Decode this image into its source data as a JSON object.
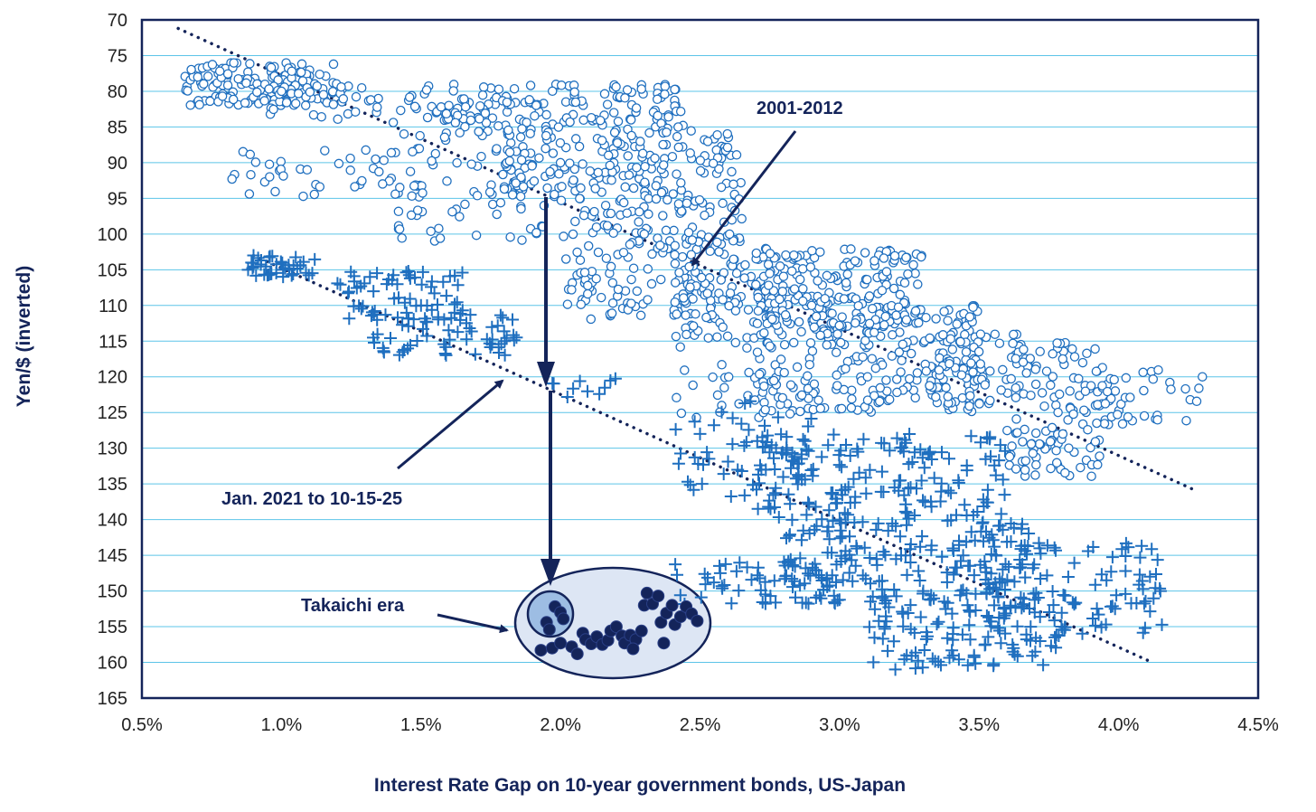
{
  "chart_data": {
    "type": "scatter",
    "title": "",
    "xlabel": "Interest Rate Gap on 10-year government bonds, US-Japan",
    "ylabel": "Yen/$ (inverted)",
    "xlim": [
      0.5,
      4.5
    ],
    "ylim": [
      165,
      70
    ],
    "y_inverted": true,
    "grid": "horizontal",
    "x_ticks": [
      "0.5%",
      "1.0%",
      "1.5%",
      "2.0%",
      "2.5%",
      "3.0%",
      "3.5%",
      "4.0%",
      "4.5%"
    ],
    "x_tick_values": [
      0.5,
      1.0,
      1.5,
      2.0,
      2.5,
      3.0,
      3.5,
      4.0,
      4.5
    ],
    "y_ticks": [
      "70",
      "75",
      "80",
      "85",
      "90",
      "95",
      "100",
      "105",
      "110",
      "115",
      "120",
      "125",
      "130",
      "135",
      "140",
      "145",
      "150",
      "155",
      "160",
      "165"
    ],
    "y_tick_values": [
      70,
      75,
      80,
      85,
      90,
      95,
      100,
      105,
      110,
      115,
      120,
      125,
      130,
      135,
      140,
      145,
      150,
      155,
      160,
      165
    ],
    "colors": {
      "series": "#1f6fbf",
      "dark": "#14245a",
      "grid": "#5cc4e8",
      "ellipse_fill": "#dde6f4",
      "small_circle_fill": "#9dbde3"
    },
    "annotations": {
      "era1": "2001-2012",
      "era2": "Jan. 2021 to 10-15-25",
      "era3": "Takaichi era"
    },
    "trendlines": [
      {
        "name": "2001-2012 trend",
        "x": [
          0.63,
          4.28
        ],
        "y": [
          71.2,
          136
        ]
      },
      {
        "name": "2021-2025 trend",
        "x": [
          0.9,
          4.12
        ],
        "y": [
          103,
          160
        ]
      }
    ],
    "series": [
      {
        "name": "2001-2012",
        "marker": "open-circle",
        "clusters": [
          {
            "x": [
              0.65,
              1.2
            ],
            "y": [
              76,
              82
            ],
            "n": 160
          },
          {
            "x": [
              0.95,
              1.35
            ],
            "y": [
              79,
              84
            ],
            "n": 30
          },
          {
            "x": [
              1.45,
              2.45
            ],
            "y": [
              79,
              85
            ],
            "n": 140
          },
          {
            "x": [
              1.4,
              1.75
            ],
            "y": [
              82,
              87
            ],
            "n": 25
          },
          {
            "x": [
              1.8,
              2.65
            ],
            "y": [
              85,
              95
            ],
            "n": 190
          },
          {
            "x": [
              0.8,
              1.9
            ],
            "y": [
              88,
              95
            ],
            "n": 70
          },
          {
            "x": [
              1.4,
              1.95
            ],
            "y": [
              93,
              101
            ],
            "n": 45
          },
          {
            "x": [
              2.0,
              2.65
            ],
            "y": [
              95,
              112
            ],
            "n": 200
          },
          {
            "x": [
              2.4,
              3.0
            ],
            "y": [
              103,
              116
            ],
            "n": 110
          },
          {
            "x": [
              2.7,
              3.3
            ],
            "y": [
              102,
              113
            ],
            "n": 180
          },
          {
            "x": [
              2.7,
              3.5
            ],
            "y": [
              110,
              125
            ],
            "n": 230
          },
          {
            "x": [
              3.3,
              3.65
            ],
            "y": [
              114,
              124
            ],
            "n": 60
          },
          {
            "x": [
              3.6,
              3.95
            ],
            "y": [
              115,
              134
            ],
            "n": 120
          },
          {
            "x": [
              3.9,
              4.3
            ],
            "y": [
              119,
              127
            ],
            "n": 40
          },
          {
            "x": [
              2.4,
              2.85
            ],
            "y": [
              118,
              126
            ],
            "n": 25
          }
        ],
        "sample_points": [
          [
            0.7,
            78
          ],
          [
            1.0,
            80
          ],
          [
            1.6,
            82
          ],
          [
            2.0,
            90
          ],
          [
            2.3,
            100
          ],
          [
            2.9,
            110
          ],
          [
            3.1,
            120
          ],
          [
            3.8,
            128
          ],
          [
            4.3,
            120
          ]
        ]
      },
      {
        "name": "Jan. 2021 to 10-15-25",
        "marker": "plus",
        "clusters": [
          {
            "x": [
              0.88,
              1.12
            ],
            "y": [
              103,
              106
            ],
            "n": 40
          },
          {
            "x": [
              1.2,
              1.65
            ],
            "y": [
              105,
              112
            ],
            "n": 60
          },
          {
            "x": [
              1.3,
              1.85
            ],
            "y": [
              111,
              117
            ],
            "n": 60
          },
          {
            "x": [
              1.95,
              2.25
            ],
            "y": [
              120,
              123
            ],
            "n": 10
          },
          {
            "x": [
              2.4,
              2.9
            ],
            "y": [
              123,
              137
            ],
            "n": 50
          },
          {
            "x": [
              2.7,
              3.6
            ],
            "y": [
              128,
              140
            ],
            "n": 160
          },
          {
            "x": [
              2.8,
              3.7
            ],
            "y": [
              140,
              152
            ],
            "n": 170
          },
          {
            "x": [
              3.1,
              3.8
            ],
            "y": [
              150,
              161
            ],
            "n": 110
          },
          {
            "x": [
              3.5,
              4.18
            ],
            "y": [
              143,
              156
            ],
            "n": 100
          },
          {
            "x": [
              2.4,
              3.0
            ],
            "y": [
              146,
              152
            ],
            "n": 50
          }
        ],
        "sample_points": [
          [
            0.9,
            103
          ],
          [
            1.5,
            110
          ],
          [
            1.8,
            115
          ],
          [
            2.5,
            128
          ],
          [
            3.0,
            140
          ],
          [
            3.3,
            150
          ],
          [
            4.15,
            150
          ],
          [
            3.2,
            161
          ]
        ]
      },
      {
        "name": "Takaichi era",
        "marker": "filled-circle",
        "points": [
          [
            1.95,
            154.4
          ],
          [
            1.96,
            155.4
          ],
          [
            1.98,
            152.2
          ],
          [
            2.0,
            153.0
          ],
          [
            2.01,
            153.9
          ],
          [
            1.93,
            158.3
          ],
          [
            1.97,
            158.0
          ],
          [
            2.0,
            157.3
          ],
          [
            2.04,
            157.8
          ],
          [
            2.06,
            158.8
          ],
          [
            2.08,
            155.9
          ],
          [
            2.09,
            156.8
          ],
          [
            2.11,
            157.4
          ],
          [
            2.13,
            156.4
          ],
          [
            2.15,
            157.5
          ],
          [
            2.17,
            156.9
          ],
          [
            2.18,
            155.6
          ],
          [
            2.2,
            155.0
          ],
          [
            2.22,
            156.3
          ],
          [
            2.23,
            157.3
          ],
          [
            2.25,
            156.2
          ],
          [
            2.27,
            156.8
          ],
          [
            2.29,
            155.6
          ],
          [
            2.3,
            152.0
          ],
          [
            2.31,
            150.3
          ],
          [
            2.33,
            151.8
          ],
          [
            2.35,
            150.7
          ],
          [
            2.36,
            154.4
          ],
          [
            2.38,
            153.1
          ],
          [
            2.4,
            152.0
          ],
          [
            2.41,
            154.7
          ],
          [
            2.43,
            153.6
          ],
          [
            2.45,
            152.2
          ],
          [
            2.47,
            153.2
          ],
          [
            2.49,
            154.2
          ],
          [
            2.37,
            157.3
          ],
          [
            2.26,
            158.1
          ]
        ]
      }
    ]
  }
}
